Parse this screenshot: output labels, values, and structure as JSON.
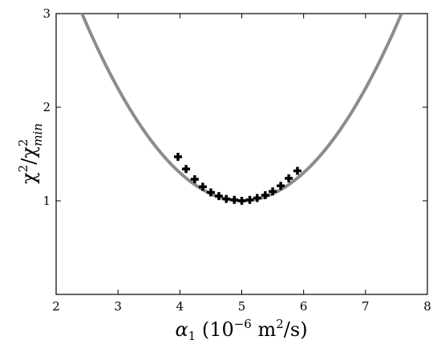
{
  "chart_data": {
    "type": "scatter",
    "xlabel_parts": {
      "symbol": "α",
      "sub": "1",
      "open": " (10",
      "exp": "−6",
      "unit": " m",
      "unit_exp": "2",
      "close": "/s)"
    },
    "ylabel_parts": {
      "num": "χ",
      "num_exp": "2",
      "slash": "/",
      "den": "χ",
      "den_exp": "2",
      "den_sub": "min"
    },
    "xlim": [
      2,
      8
    ],
    "ylim": [
      0,
      3
    ],
    "x_ticks": [
      "2",
      "3",
      "4",
      "5",
      "6",
      "7",
      "8"
    ],
    "y_ticks": [
      "1",
      "2",
      "3"
    ],
    "grid": false,
    "series": [
      {
        "kind": "curve",
        "color": "#8c8c8c",
        "function": "parabola",
        "vertex_x": 5.0,
        "vertex_y": 1.0,
        "curvature": 0.3
      },
      {
        "kind": "points",
        "color": "#000000",
        "marker": "plus",
        "x": [
          3.97,
          4.1,
          4.24,
          4.37,
          4.5,
          4.63,
          4.75,
          4.88,
          5.0,
          5.13,
          5.25,
          5.38,
          5.5,
          5.63,
          5.76,
          5.9
        ],
        "y": [
          1.47,
          1.34,
          1.23,
          1.15,
          1.09,
          1.05,
          1.02,
          1.01,
          1.0,
          1.01,
          1.03,
          1.06,
          1.1,
          1.16,
          1.24,
          1.32
        ]
      }
    ]
  }
}
